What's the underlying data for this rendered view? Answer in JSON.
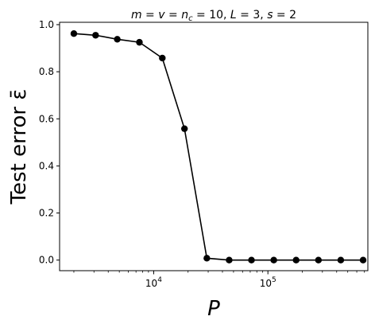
{
  "chart_data": {
    "type": "line",
    "title": "m = v = n_c = 10, L = 3, s = 2",
    "xlabel": "P",
    "ylabel": "Test error ε̄",
    "xscale": "log",
    "xlim": [
      1500,
      750000
    ],
    "ylim": [
      -0.045,
      1.01
    ],
    "yticks": [
      0.0,
      0.2,
      0.4,
      0.6,
      0.8,
      1.0
    ],
    "ytick_labels": [
      "0.0",
      "0.2",
      "0.4",
      "0.6",
      "0.8",
      "1.0"
    ],
    "xticks_major": [
      10000,
      100000
    ],
    "xtick_labels": [
      {
        "base": "10",
        "exp": "4"
      },
      {
        "base": "10",
        "exp": "5"
      }
    ],
    "grid": false,
    "color": "#000000",
    "series": [
      {
        "x": [
          2000,
          3100,
          4800,
          7500,
          11900,
          18600,
          29200,
          45800,
          71800,
          112600,
          176600,
          277000,
          434500,
          681500
        ],
        "y": [
          0.962,
          0.955,
          0.938,
          0.925,
          0.858,
          0.558,
          0.008,
          0.0,
          0.0,
          0.0,
          0.0,
          0.0,
          0.0,
          0.0
        ]
      }
    ]
  }
}
